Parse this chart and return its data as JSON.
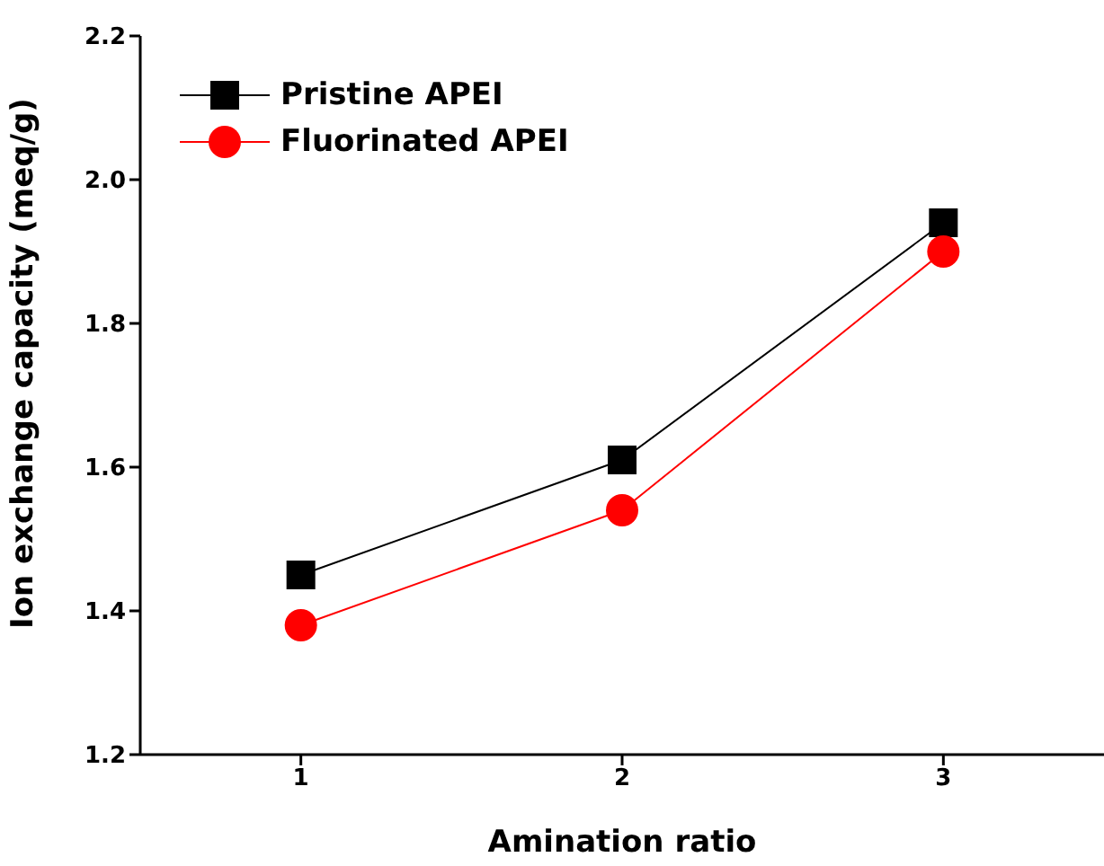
{
  "chart_data": {
    "type": "line",
    "xlabel": "Amination ratio",
    "ylabel": "Ion exchange capacity (meq/g)",
    "x": [
      1,
      2,
      3
    ],
    "series": [
      {
        "name": "Pristine APEI",
        "color": "#000000",
        "marker": "square",
        "values": [
          1.45,
          1.61,
          1.94
        ]
      },
      {
        "name": "Fluorinated APEI",
        "color": "#ff0000",
        "marker": "circle",
        "values": [
          1.38,
          1.54,
          1.9
        ]
      }
    ],
    "xlim": [
      0.5,
      3.5
    ],
    "xticks": [
      1,
      2,
      3
    ],
    "ylim": [
      1.2,
      2.2
    ],
    "yticks": [
      1.2,
      1.4,
      1.6,
      1.8,
      {
        "value": 2.0,
        "label": "2.0"
      },
      2.2
    ],
    "grid": false,
    "legend": "top left",
    "line_style": "solid"
  }
}
